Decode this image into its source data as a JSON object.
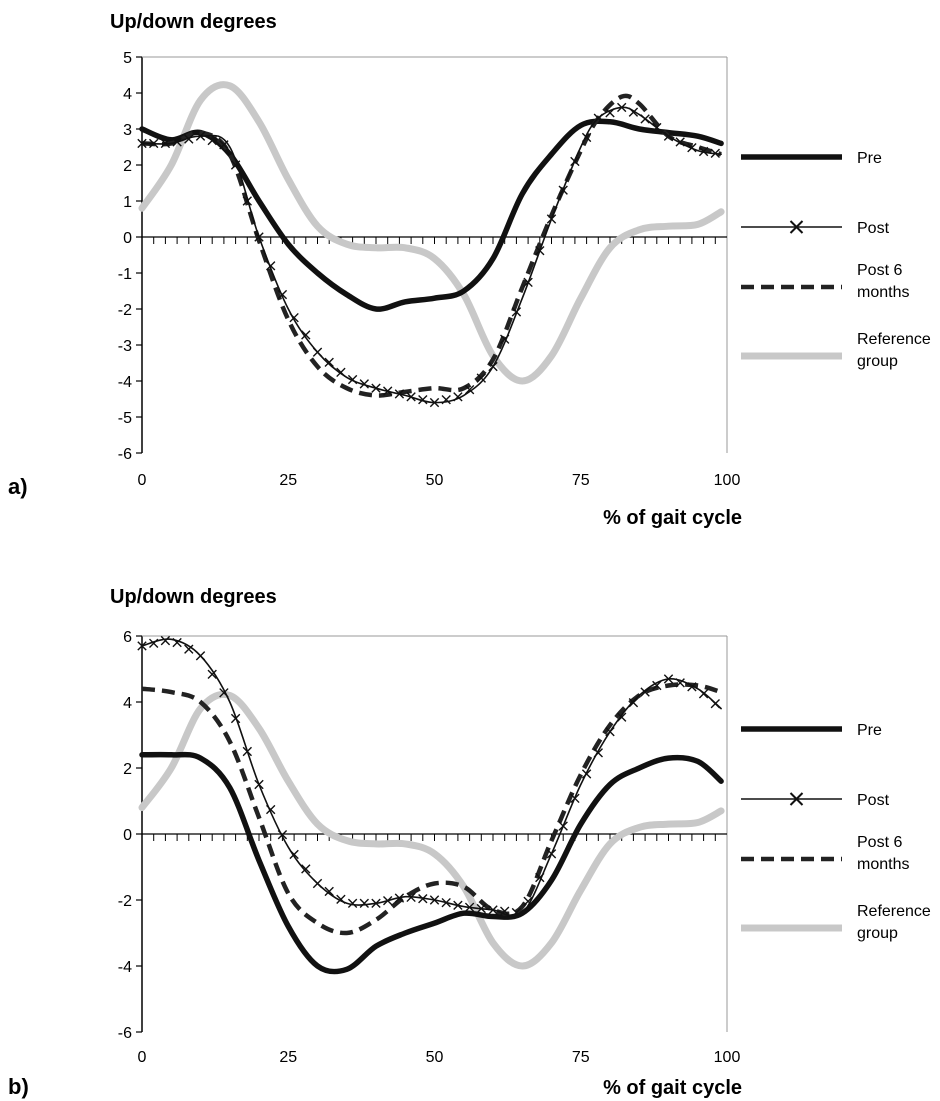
{
  "chart_data": [
    {
      "panel_label": "a)",
      "type": "line",
      "ylabel": "Up/down degrees",
      "xlabel": "% of gait cycle",
      "xlim": [
        0,
        100
      ],
      "ylim": [
        -6,
        5
      ],
      "xticks": [
        0,
        25,
        50,
        75,
        100
      ],
      "yticks": [
        -6,
        -5,
        -4,
        -3,
        -2,
        -1,
        0,
        1,
        2,
        3,
        4,
        5
      ],
      "grid": false,
      "legend_position": "right",
      "series": [
        {
          "name": "Pre",
          "style": "solid-thick-black",
          "x": [
            0,
            5,
            10,
            15,
            20,
            25,
            30,
            35,
            40,
            45,
            50,
            55,
            60,
            65,
            70,
            75,
            80,
            85,
            90,
            95,
            99
          ],
          "y": [
            3.0,
            2.7,
            2.9,
            2.3,
            1.0,
            -0.2,
            -1.0,
            -1.6,
            -2.0,
            -1.8,
            -1.7,
            -1.5,
            -0.6,
            1.2,
            2.3,
            3.1,
            3.2,
            3.0,
            2.9,
            2.8,
            2.6
          ]
        },
        {
          "name": "Post",
          "style": "thin-black-x-markers",
          "x": [
            0,
            5,
            10,
            15,
            20,
            25,
            30,
            35,
            40,
            45,
            50,
            55,
            60,
            65,
            70,
            75,
            78,
            82,
            85,
            90,
            95,
            99
          ],
          "y": [
            2.6,
            2.6,
            2.8,
            2.5,
            0.0,
            -2.0,
            -3.2,
            -3.9,
            -4.2,
            -4.4,
            -4.6,
            -4.4,
            -3.6,
            -1.7,
            0.5,
            2.5,
            3.3,
            3.6,
            3.4,
            2.8,
            2.4,
            2.3
          ]
        },
        {
          "name": "Post 6 months",
          "style": "dashed-thick-black",
          "x": [
            0,
            5,
            10,
            15,
            20,
            25,
            30,
            35,
            40,
            45,
            50,
            55,
            60,
            65,
            70,
            75,
            78,
            82,
            85,
            90,
            95,
            99
          ],
          "y": [
            2.6,
            2.6,
            2.9,
            2.3,
            -0.1,
            -2.3,
            -3.6,
            -4.2,
            -4.4,
            -4.3,
            -4.2,
            -4.2,
            -3.4,
            -1.4,
            0.6,
            2.4,
            3.3,
            3.9,
            3.7,
            2.8,
            2.5,
            2.3
          ]
        },
        {
          "name": "Reference group",
          "style": "thick-light-gray",
          "x": [
            0,
            5,
            10,
            15,
            20,
            25,
            30,
            35,
            40,
            45,
            50,
            55,
            60,
            65,
            70,
            75,
            80,
            85,
            90,
            95,
            99
          ],
          "y": [
            0.8,
            2.0,
            3.8,
            4.2,
            3.2,
            1.6,
            0.3,
            -0.2,
            -0.3,
            -0.3,
            -0.6,
            -1.6,
            -3.3,
            -4.0,
            -3.3,
            -1.7,
            -0.3,
            0.2,
            0.3,
            0.35,
            0.7
          ]
        }
      ]
    },
    {
      "panel_label": "b)",
      "type": "line",
      "ylabel": "Up/down degrees",
      "xlabel": "% of gait cycle",
      "xlim": [
        0,
        100
      ],
      "ylim": [
        -6,
        6
      ],
      "xticks": [
        0,
        25,
        50,
        75,
        100
      ],
      "yticks": [
        -6,
        -4,
        -2,
        0,
        2,
        4,
        6
      ],
      "grid": false,
      "legend_position": "right",
      "series": [
        {
          "name": "Pre",
          "style": "solid-thick-black",
          "x": [
            0,
            5,
            10,
            15,
            20,
            25,
            30,
            35,
            40,
            45,
            50,
            55,
            60,
            65,
            70,
            75,
            80,
            85,
            90,
            95,
            99
          ],
          "y": [
            2.4,
            2.4,
            2.3,
            1.4,
            -0.8,
            -2.8,
            -4.0,
            -4.1,
            -3.4,
            -3.0,
            -2.7,
            -2.4,
            -2.5,
            -2.4,
            -1.4,
            0.3,
            1.5,
            2.0,
            2.3,
            2.2,
            1.6
          ]
        },
        {
          "name": "Post",
          "style": "thin-black-x-markers",
          "x": [
            0,
            5,
            10,
            15,
            20,
            25,
            30,
            35,
            40,
            45,
            50,
            55,
            60,
            65,
            70,
            75,
            80,
            85,
            90,
            95,
            99
          ],
          "y": [
            5.7,
            5.9,
            5.4,
            4.0,
            1.5,
            -0.4,
            -1.5,
            -2.1,
            -2.1,
            -1.9,
            -2.0,
            -2.2,
            -2.3,
            -2.4,
            -0.6,
            1.5,
            3.1,
            4.2,
            4.7,
            4.4,
            3.8
          ]
        },
        {
          "name": "Post 6 months",
          "style": "dashed-thick-black",
          "x": [
            0,
            5,
            10,
            15,
            20,
            25,
            30,
            35,
            40,
            45,
            50,
            55,
            60,
            65,
            70,
            75,
            80,
            85,
            90,
            95,
            99
          ],
          "y": [
            4.4,
            4.3,
            4.0,
            2.8,
            0.5,
            -1.8,
            -2.7,
            -3.0,
            -2.6,
            -1.9,
            -1.5,
            -1.6,
            -2.3,
            -2.2,
            -0.2,
            1.8,
            3.3,
            4.2,
            4.5,
            4.5,
            4.3
          ]
        },
        {
          "name": "Reference group",
          "style": "thick-light-gray",
          "x": [
            0,
            5,
            10,
            15,
            20,
            25,
            30,
            35,
            40,
            45,
            50,
            55,
            60,
            65,
            70,
            75,
            80,
            85,
            90,
            95,
            99
          ],
          "y": [
            0.8,
            2.0,
            3.8,
            4.2,
            3.2,
            1.6,
            0.3,
            -0.2,
            -0.3,
            -0.3,
            -0.6,
            -1.6,
            -3.3,
            -4.0,
            -3.3,
            -1.7,
            -0.3,
            0.2,
            0.3,
            0.35,
            0.7
          ]
        }
      ]
    }
  ],
  "colors": {
    "pre": "#111111",
    "post": "#111111",
    "post6": "#222222",
    "reference": "#c8c8c8"
  }
}
